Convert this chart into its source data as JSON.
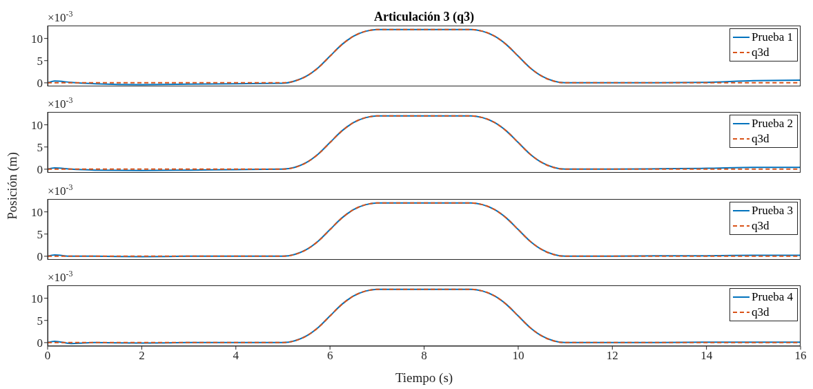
{
  "chart_data": [
    {
      "type": "line",
      "title": "Articulación 3 (q3)",
      "annotations": [
        "×10$^{-3}$"
      ],
      "xlim": [
        0,
        16
      ],
      "xticks": [
        0,
        2,
        4,
        6,
        8,
        10,
        12,
        14,
        16
      ],
      "ylim": [
        -0.8,
        12.9
      ],
      "yticks": [
        0,
        5,
        10
      ],
      "tick_labels": "y",
      "legend": "top right",
      "grid": false,
      "series": [
        {
          "name": "Prueba 1",
          "color": "#0072bd",
          "line_style": "solid",
          "x": [
            0,
            0.15,
            0.5,
            1,
            2,
            3,
            4,
            5,
            5.25,
            5.5,
            5.75,
            6,
            6.25,
            6.5,
            6.75,
            7,
            9,
            9.25,
            9.5,
            9.75,
            10,
            10.25,
            10.5,
            10.75,
            11,
            12,
            13,
            14,
            15,
            16
          ],
          "values": [
            0,
            0.4,
            0.1,
            -0.2,
            -0.4,
            -0.3,
            -0.2,
            -0.1,
            0.4,
            1.5,
            3.4,
            6,
            8.6,
            10.5,
            11.6,
            12,
            12,
            11.6,
            10.5,
            8.6,
            6,
            3.4,
            1.5,
            0.4,
            0,
            0,
            0,
            0.1,
            0.5,
            0.6
          ]
        },
        {
          "name": "q3d",
          "color": "#d95319",
          "line_style": "dashed",
          "x": [
            0,
            5,
            5.25,
            5.5,
            5.75,
            6,
            6.25,
            6.5,
            6.75,
            7,
            9,
            9.25,
            9.5,
            9.75,
            10,
            10.25,
            10.5,
            10.75,
            11,
            16
          ],
          "values": [
            0,
            0,
            0.4,
            1.5,
            3.4,
            6,
            8.6,
            10.5,
            11.6,
            12,
            12,
            11.6,
            10.5,
            8.6,
            6,
            3.4,
            1.5,
            0.4,
            0,
            0
          ]
        }
      ]
    },
    {
      "type": "line",
      "ylabel": "Posición (m)",
      "annotations": [
        "×10$^{-3}$"
      ],
      "xlim": [
        0,
        16
      ],
      "xticks": [
        0,
        2,
        4,
        6,
        8,
        10,
        12,
        14,
        16
      ],
      "ylim": [
        -0.8,
        12.9
      ],
      "yticks": [
        0,
        5,
        10
      ],
      "tick_labels": "y",
      "legend": "top right",
      "grid": false,
      "series": [
        {
          "name": "Prueba 2",
          "color": "#0072bd",
          "line_style": "solid",
          "x": [
            0,
            0.15,
            0.5,
            1,
            2,
            3,
            4,
            5,
            5.25,
            5.5,
            5.75,
            6,
            6.25,
            6.5,
            6.75,
            7,
            9,
            9.25,
            9.5,
            9.75,
            10,
            10.25,
            10.5,
            10.75,
            11,
            12,
            13,
            14,
            15,
            16
          ],
          "values": [
            0,
            0.3,
            0,
            -0.2,
            -0.3,
            -0.2,
            -0.1,
            0,
            0.4,
            1.5,
            3.4,
            6,
            8.6,
            10.5,
            11.6,
            12,
            12,
            11.6,
            10.5,
            8.6,
            6,
            3.4,
            1.5,
            0.4,
            0,
            0,
            0.1,
            0.2,
            0.4,
            0.4
          ]
        },
        {
          "name": "q3d",
          "color": "#d95319",
          "line_style": "dashed",
          "x": [
            0,
            5,
            5.25,
            5.5,
            5.75,
            6,
            6.25,
            6.5,
            6.75,
            7,
            9,
            9.25,
            9.5,
            9.75,
            10,
            10.25,
            10.5,
            10.75,
            11,
            16
          ],
          "values": [
            0,
            0,
            0.4,
            1.5,
            3.4,
            6,
            8.6,
            10.5,
            11.6,
            12,
            12,
            11.6,
            10.5,
            8.6,
            6,
            3.4,
            1.5,
            0.4,
            0,
            0
          ]
        }
      ]
    },
    {
      "type": "line",
      "annotations": [
        "×10$^{-3}$"
      ],
      "xlim": [
        0,
        16
      ],
      "xticks": [
        0,
        2,
        4,
        6,
        8,
        10,
        12,
        14,
        16
      ],
      "ylim": [
        -0.8,
        12.9
      ],
      "yticks": [
        0,
        5,
        10
      ],
      "tick_labels": "y",
      "legend": "top right",
      "grid": false,
      "series": [
        {
          "name": "Prueba 3",
          "color": "#0072bd",
          "line_style": "solid",
          "x": [
            0,
            0.15,
            0.5,
            1,
            2,
            3,
            4,
            5,
            5.25,
            5.5,
            5.75,
            6,
            6.25,
            6.5,
            6.75,
            7,
            9,
            9.25,
            9.5,
            9.75,
            10,
            10.25,
            10.5,
            10.75,
            11,
            12,
            13,
            14,
            15,
            16
          ],
          "values": [
            0,
            0.3,
            0,
            0,
            -0.1,
            0,
            0,
            0,
            0.4,
            1.5,
            3.4,
            6,
            8.6,
            10.5,
            11.6,
            12,
            12,
            11.6,
            10.5,
            8.6,
            6,
            3.4,
            1.5,
            0.4,
            0,
            0,
            0.1,
            0.1,
            0.2,
            0.2
          ]
        },
        {
          "name": "q3d",
          "color": "#d95319",
          "line_style": "dashed",
          "x": [
            0,
            5,
            5.25,
            5.5,
            5.75,
            6,
            6.25,
            6.5,
            6.75,
            7,
            9,
            9.25,
            9.5,
            9.75,
            10,
            10.25,
            10.5,
            10.75,
            11,
            16
          ],
          "values": [
            0,
            0,
            0.4,
            1.5,
            3.4,
            6,
            8.6,
            10.5,
            11.6,
            12,
            12,
            11.6,
            10.5,
            8.6,
            6,
            3.4,
            1.5,
            0.4,
            0,
            0
          ]
        }
      ]
    },
    {
      "type": "line",
      "xlabel": "Tiempo (s)",
      "annotations": [
        "×10$^{-3}$"
      ],
      "xlim": [
        0,
        16
      ],
      "xticks": [
        0,
        2,
        4,
        6,
        8,
        10,
        12,
        14,
        16
      ],
      "ylim": [
        -0.8,
        12.9
      ],
      "yticks": [
        0,
        5,
        10
      ],
      "legend": "top right",
      "grid": false,
      "series": [
        {
          "name": "Prueba 4",
          "color": "#0072bd",
          "line_style": "solid",
          "x": [
            0,
            0.15,
            0.5,
            1,
            2,
            3,
            4,
            5,
            5.25,
            5.5,
            5.75,
            6,
            6.25,
            6.5,
            6.75,
            7,
            9,
            9.25,
            9.5,
            9.75,
            10,
            10.25,
            10.5,
            10.75,
            11,
            12,
            13,
            14,
            15,
            16
          ],
          "values": [
            0,
            0.3,
            -0.2,
            0,
            -0.1,
            0,
            0,
            0,
            0.4,
            1.5,
            3.4,
            6,
            8.6,
            10.5,
            11.6,
            12,
            12,
            11.6,
            10.5,
            8.6,
            6,
            3.4,
            1.5,
            0.4,
            0,
            0,
            0,
            0.1,
            0.1,
            0.1
          ]
        },
        {
          "name": "q3d",
          "color": "#d95319",
          "line_style": "dashed",
          "x": [
            0,
            5,
            5.25,
            5.5,
            5.75,
            6,
            6.25,
            6.5,
            6.75,
            7,
            9,
            9.25,
            9.5,
            9.75,
            10,
            10.25,
            10.5,
            10.75,
            11,
            16
          ],
          "values": [
            0,
            0,
            0.4,
            1.5,
            3.4,
            6,
            8.6,
            10.5,
            11.6,
            12,
            12,
            11.6,
            10.5,
            8.6,
            6,
            3.4,
            1.5,
            0.4,
            0,
            0
          ]
        }
      ]
    }
  ]
}
